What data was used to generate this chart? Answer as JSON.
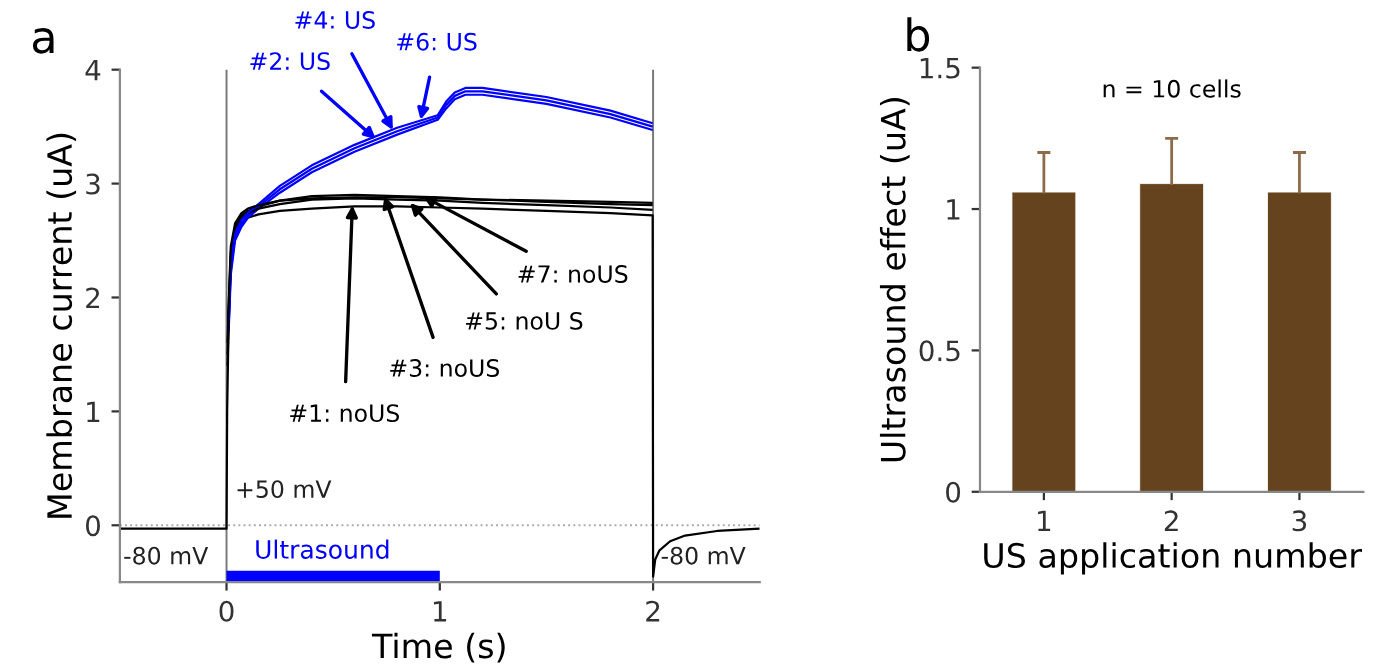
{
  "chart_data": [
    {
      "type": "line",
      "title": "a",
      "xlabel": "Time (s)",
      "ylabel": "Membrane current (uA)",
      "xlim": [
        -0.5,
        2.5
      ],
      "xticks": [
        0,
        1,
        2
      ],
      "ylim": [
        -0.5,
        4
      ],
      "yticks": [
        0,
        1,
        2,
        3,
        4
      ],
      "grid": false,
      "marker": "none",
      "line_style": "solid",
      "series": [
        {
          "color": "#000000",
          "x": [
            -0.5,
            0,
            0.003,
            0.01,
            0.02,
            0.04,
            0.07,
            0.1,
            0.15,
            0.25,
            0.4,
            0.6,
            0.8,
            1.0,
            1.2,
            1.5,
            1.8,
            1.998,
            2,
            2.01,
            2.03,
            2.08,
            2.15,
            2.3,
            2.5
          ],
          "values": [
            -0.03,
            -0.03,
            1.0,
            1.8,
            2.3,
            2.55,
            2.65,
            2.7,
            2.73,
            2.76,
            2.78,
            2.8,
            2.8,
            2.79,
            2.78,
            2.76,
            2.74,
            2.72,
            -0.45,
            -0.3,
            -0.22,
            -0.14,
            -0.09,
            -0.05,
            -0.03
          ]
        },
        {
          "color": "#0000ff",
          "x": [
            0.01,
            0.02,
            0.04,
            0.07,
            0.1,
            0.15,
            0.25,
            0.4,
            0.6,
            0.8,
            0.99,
            1.03,
            1.07,
            1.12,
            1.2,
            1.5,
            1.8,
            1.998
          ],
          "values": [
            1.7,
            2.2,
            2.5,
            2.62,
            2.7,
            2.78,
            2.92,
            3.1,
            3.28,
            3.43,
            3.56,
            3.66,
            3.74,
            3.78,
            3.78,
            3.7,
            3.58,
            3.47
          ]
        },
        {
          "color": "#000000",
          "x": [
            0.005,
            0.01,
            0.02,
            0.04,
            0.07,
            0.1,
            0.15,
            0.25,
            0.4,
            0.6,
            0.8,
            1.0,
            1.2,
            1.5,
            1.8,
            1.998
          ],
          "values": [
            1.5,
            1.9,
            2.4,
            2.62,
            2.72,
            2.76,
            2.8,
            2.85,
            2.89,
            2.9,
            2.89,
            2.88,
            2.86,
            2.84,
            2.82,
            2.81
          ]
        },
        {
          "color": "#0000ff",
          "x": [
            0.01,
            0.02,
            0.04,
            0.07,
            0.1,
            0.15,
            0.25,
            0.4,
            0.6,
            0.8,
            0.99,
            1.03,
            1.07,
            1.12,
            1.2,
            1.5,
            1.8,
            1.998
          ],
          "values": [
            1.75,
            2.25,
            2.53,
            2.65,
            2.72,
            2.8,
            2.95,
            3.13,
            3.31,
            3.46,
            3.58,
            3.69,
            3.77,
            3.81,
            3.81,
            3.73,
            3.61,
            3.5
          ]
        },
        {
          "color": "#000000",
          "x": [
            0.005,
            0.01,
            0.02,
            0.04,
            0.07,
            0.1,
            0.15,
            0.25,
            0.4,
            0.6,
            0.8,
            1.0,
            1.2,
            1.5,
            1.8,
            1.998
          ],
          "values": [
            1.4,
            1.85,
            2.35,
            2.6,
            2.7,
            2.74,
            2.78,
            2.82,
            2.86,
            2.87,
            2.86,
            2.85,
            2.83,
            2.81,
            2.79,
            2.77
          ]
        },
        {
          "color": "#0000ff",
          "x": [
            0.01,
            0.02,
            0.04,
            0.07,
            0.1,
            0.15,
            0.25,
            0.4,
            0.6,
            0.8,
            0.99,
            1.03,
            1.07,
            1.12,
            1.2,
            1.5,
            1.8,
            1.998
          ],
          "values": [
            1.8,
            2.3,
            2.56,
            2.68,
            2.74,
            2.82,
            2.98,
            3.16,
            3.34,
            3.49,
            3.6,
            3.72,
            3.8,
            3.84,
            3.84,
            3.76,
            3.64,
            3.53
          ]
        },
        {
          "color": "#000000",
          "x": [
            0.005,
            0.01,
            0.02,
            0.04,
            0.07,
            0.1,
            0.15,
            0.25,
            0.4,
            0.6,
            0.8,
            1.0,
            1.2,
            1.5,
            1.8,
            1.998
          ],
          "values": [
            1.6,
            1.95,
            2.45,
            2.65,
            2.74,
            2.78,
            2.81,
            2.85,
            2.87,
            2.88,
            2.88,
            2.87,
            2.86,
            2.85,
            2.84,
            2.83
          ]
        },
        {
          "name": "Ultrasound",
          "color": "#0000ff",
          "x": [
            0,
            1
          ],
          "values": [
            -0.46,
            -0.46
          ]
        }
      ],
      "ref_lines": [
        {
          "axis": "y",
          "value": 0,
          "color": "#aaaaaa",
          "line_style": "dotted"
        },
        {
          "axis": "x",
          "value": 0,
          "color": "#777777",
          "line_style": "solid"
        },
        {
          "axis": "x",
          "value": 2,
          "color": "#777777",
          "line_style": "solid"
        }
      ],
      "annotations": [
        {
          "text": "#1: noUS",
          "x": 0.59,
          "y": 2.81
        },
        {
          "text": "#2: US",
          "x": 0.7,
          "y": 3.39
        },
        {
          "text": "#3: noUS",
          "x": 0.74,
          "y": 2.89
        },
        {
          "text": "#4: US",
          "x": 0.78,
          "y": 3.47
        },
        {
          "text": "#5: noU S",
          "x": 0.86,
          "y": 2.83
        },
        {
          "text": "#6: US",
          "x": 0.91,
          "y": 3.56
        },
        {
          "text": "#7: noUS",
          "x": 0.92,
          "y": 2.89
        },
        "+50 mV",
        "-80 mV",
        "-80 mV"
      ]
    },
    {
      "type": "bar",
      "title": "b",
      "xlabel": "US application number",
      "ylabel": "Ultrasound effect (uA)",
      "categories": [
        "1",
        "2",
        "3"
      ],
      "values": [
        1.06,
        1.09,
        1.06
      ],
      "color": "#65431f",
      "errors": [
        [
          1.06,
          1.2
        ],
        [
          1.09,
          1.25
        ],
        [
          1.06,
          1.2
        ]
      ],
      "ylim": [
        0,
        1.5
      ],
      "yticks": [
        0,
        0.5,
        1,
        1.5
      ],
      "grid": false,
      "annotations": [
        "n = 10 cells"
      ]
    }
  ]
}
